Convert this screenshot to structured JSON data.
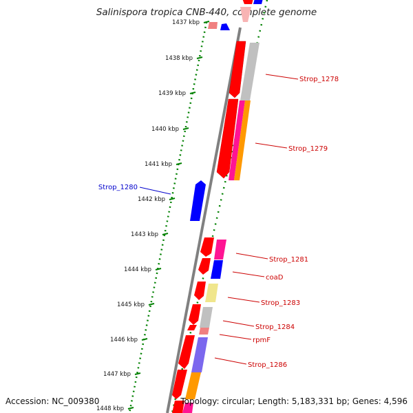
{
  "title": "Salinispora tropica CNB-440, complete genome",
  "accession": "Accession: NC_009380",
  "topology": "Topology: circular; Length: 5,183,331 bp; Genes: 4,596",
  "colors": {
    "forward_cds": "#ff0000",
    "plus_strand_other": "#0000ff",
    "reverse_red": "#ff0000",
    "backbone": "#808080",
    "ticks": "#008000",
    "label_red": "#cc0000",
    "label_blue": "#0000cc"
  },
  "ticks": [
    "1437 kbp",
    "1438 kbp",
    "1439 kbp",
    "1440 kbp",
    "1441 kbp",
    "1442 kbp",
    "1443 kbp",
    "1444 kbp",
    "1445 kbp",
    "1446 kbp",
    "1447 kbp",
    "1448 kbp"
  ],
  "gene_labels": [
    {
      "text": "Strop_1278",
      "color": "red"
    },
    {
      "text": "Strop_1279",
      "color": "red"
    },
    {
      "text": "Strop_1280",
      "color": "blue"
    },
    {
      "text": "Strop_1281",
      "color": "red"
    },
    {
      "text": "coaD",
      "color": "red"
    },
    {
      "text": "Strop_1283",
      "color": "red"
    },
    {
      "text": "Strop_1284",
      "color": "red"
    },
    {
      "text": "rpmF",
      "color": "red"
    },
    {
      "text": "Strop_1286",
      "color": "red"
    }
  ]
}
